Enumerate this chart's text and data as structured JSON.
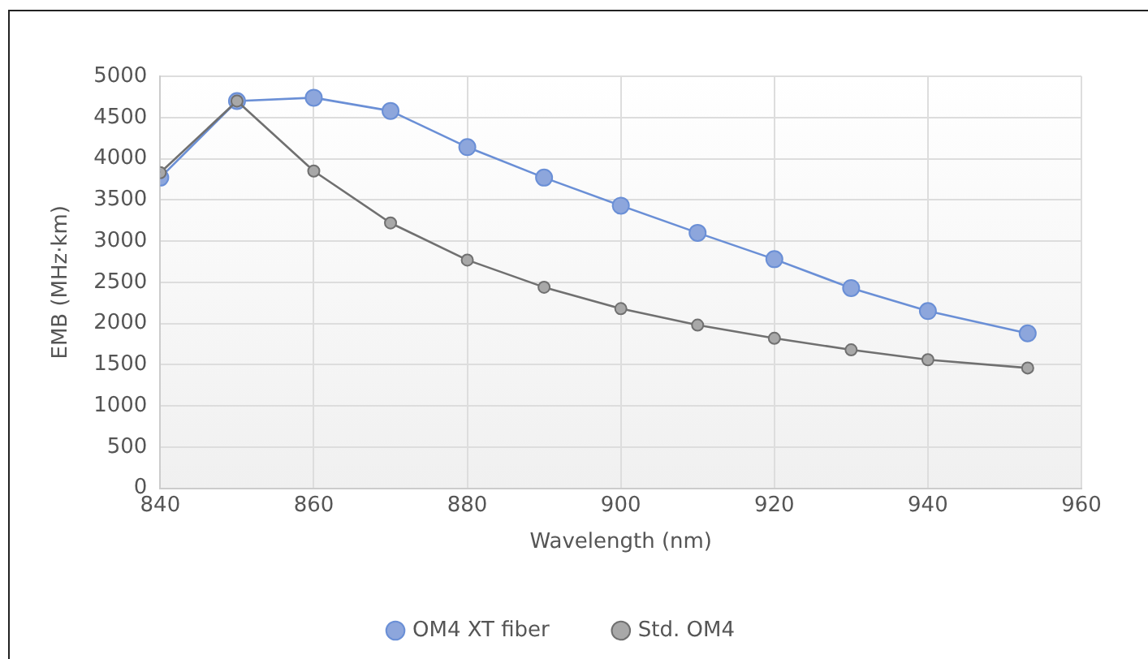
{
  "chart_data": {
    "type": "line",
    "xlabel": "Wavelength (nm)",
    "ylabel": "EMB (MHz·km)",
    "x": [
      840,
      850,
      860,
      870,
      880,
      890,
      900,
      910,
      920,
      930,
      940,
      953
    ],
    "series": [
      {
        "name": "OM4 XT fiber",
        "color": "#6a8fd6",
        "values": [
          3770,
          4700,
          4740,
          4580,
          4140,
          3770,
          3430,
          3100,
          2780,
          2430,
          2150,
          1880
        ]
      },
      {
        "name": "Std. OM4",
        "color": "#707070",
        "values": [
          3830,
          4700,
          3850,
          3220,
          2770,
          2440,
          2180,
          1980,
          1820,
          1680,
          1560,
          1460
        ]
      }
    ],
    "xlim": [
      840,
      960
    ],
    "xticks": [
      840,
      860,
      880,
      900,
      920,
      940,
      960
    ],
    "ylim": [
      0,
      5000
    ],
    "yticks": [
      0,
      500,
      1000,
      1500,
      2000,
      2500,
      3000,
      3500,
      4000,
      4500,
      5000
    ],
    "grid": true,
    "legend": "bottom",
    "marker": "circle",
    "line_style": "solid"
  }
}
